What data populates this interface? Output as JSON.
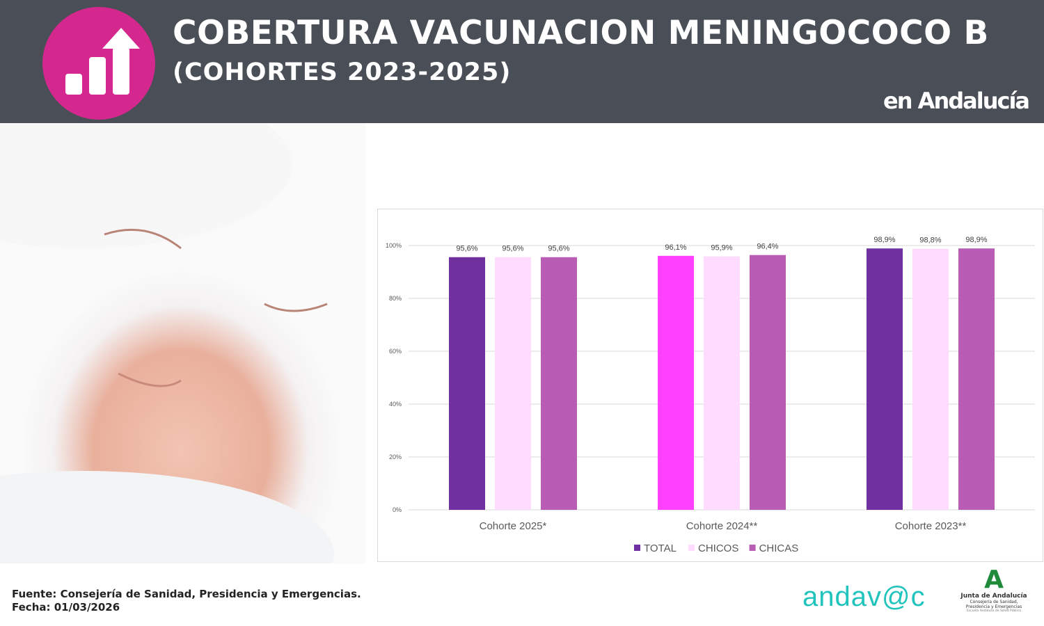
{
  "header": {
    "title": "COBERTURA VACUNACION MENINGOCOCO B",
    "subtitle": "(COHORTES 2023-2025)",
    "region": "en Andalucía",
    "icon": "bar-chart-up-arrow-icon"
  },
  "footer": {
    "source": "Fuente: Consejería de Sanidad, Presidencia y Emergencias.",
    "date": "Fecha: 01/03/2026"
  },
  "logos": {
    "andavac": "andav@c",
    "junta": "Junta de Andalucía",
    "junta_sub": "Consejería de Sanidad, Presidencia y Emergencias",
    "junta_small": "Escuela Andaluza de Salud Pública"
  },
  "chart_data": {
    "type": "bar",
    "categories": [
      "Cohorte 2025*",
      "Cohorte 2024**",
      "Cohorte 2023**"
    ],
    "series": [
      {
        "name": "TOTAL",
        "values": [
          95.6,
          96.1,
          98.9
        ],
        "color": "#7030a0",
        "colors": [
          "#7030a0",
          "#ff40ff",
          "#7030a0"
        ]
      },
      {
        "name": "CHICOS",
        "values": [
          95.6,
          95.9,
          98.8
        ],
        "color": "#ffdcff"
      },
      {
        "name": "CHICAS",
        "values": [
          95.6,
          96.4,
          98.9
        ],
        "color": "#b95cb5"
      }
    ],
    "data_labels": [
      [
        "95,6%",
        "95,6%",
        "95,6%"
      ],
      [
        "96,1%",
        "95,9%",
        "96,4%"
      ],
      [
        "98,9%",
        "98,8%",
        "98,9%"
      ]
    ],
    "yticks": [
      "0%",
      "20%",
      "40%",
      "60%",
      "80%",
      "100%"
    ],
    "ylim": [
      0,
      100
    ],
    "grid": true,
    "legend": "bottom"
  }
}
